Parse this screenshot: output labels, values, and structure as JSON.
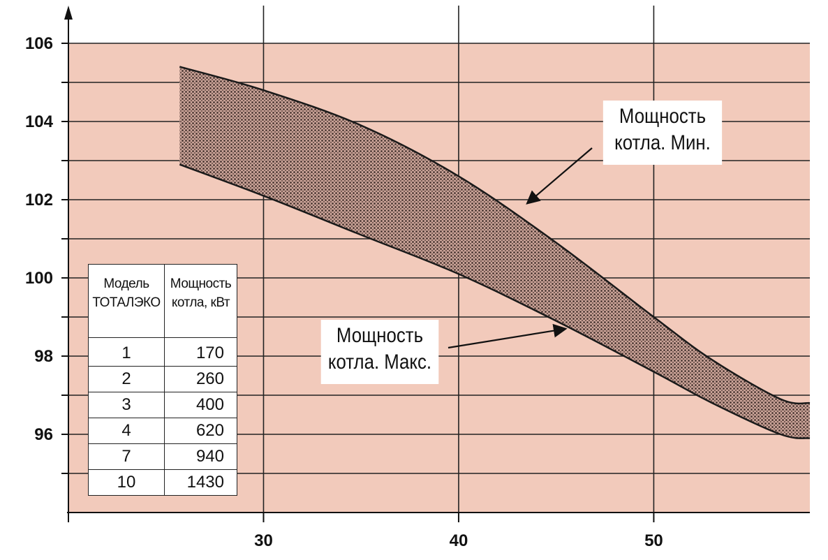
{
  "chart_data": {
    "type": "area",
    "title": "",
    "xlabel": "",
    "ylabel": "",
    "xlim": [
      20,
      58
    ],
    "ylim": [
      94,
      106
    ],
    "x_ticks": [
      30,
      40,
      50
    ],
    "y_ticks": [
      96,
      98,
      100,
      102,
      104,
      106
    ],
    "grid": true,
    "series": [
      {
        "name": "Мощность котла. Мин.",
        "points": [
          [
            25.7,
            105.4
          ],
          [
            30,
            104.8
          ],
          [
            35,
            103.9
          ],
          [
            40,
            102.6
          ],
          [
            45,
            100.9
          ],
          [
            50,
            99.0
          ],
          [
            53,
            97.9
          ],
          [
            56.5,
            96.9
          ],
          [
            58,
            96.8
          ]
        ]
      },
      {
        "name": "Мощность котла. Макс.",
        "points": [
          [
            25.7,
            102.9
          ],
          [
            30,
            102.1
          ],
          [
            35,
            101.1
          ],
          [
            40,
            100.1
          ],
          [
            45,
            98.9
          ],
          [
            50,
            97.6
          ],
          [
            53,
            96.8
          ],
          [
            56.5,
            96.0
          ],
          [
            58,
            95.9
          ]
        ]
      }
    ],
    "annotations": [
      {
        "lines": [
          "Мощность",
          "котла. Мин."
        ],
        "arrow_to": [
          43.5,
          101.9
        ]
      },
      {
        "lines": [
          "Мощность",
          "котла. Макс."
        ],
        "arrow_to": [
          45.5,
          98.7
        ]
      }
    ],
    "table": {
      "header": [
        "Модель ТОТАЛЭКО",
        "Мощность котла, кВт"
      ],
      "header_lines": [
        [
          "Модель",
          "ТОТАЛЭКО"
        ],
        [
          "Мощность",
          "котла, кВт"
        ]
      ],
      "rows": [
        [
          "1",
          "170"
        ],
        [
          "2",
          "260"
        ],
        [
          "3",
          "400"
        ],
        [
          "4",
          "620"
        ],
        [
          "7",
          "940"
        ],
        [
          "10",
          "1430"
        ]
      ]
    }
  },
  "colors": {
    "plot_background": "#f2cabb",
    "grid": "#222222",
    "band_fill": "#b28f86",
    "band_pattern_dot": "#3a2a26",
    "curve": "#1a1a1a"
  }
}
